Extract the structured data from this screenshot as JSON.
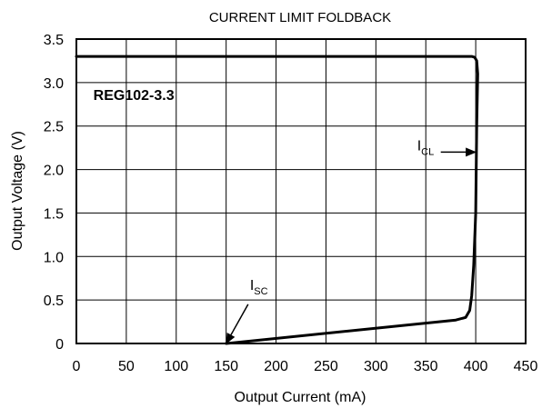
{
  "chart_data": {
    "type": "line",
    "title": "CURRENT LIMIT FOLDBACK",
    "xlabel": "Output Current (mA)",
    "ylabel": "Output Voltage (V)",
    "xlim": [
      0,
      450
    ],
    "ylim": [
      0,
      3.5
    ],
    "x_ticks": [
      "0",
      "50",
      "100",
      "150",
      "200",
      "250",
      "300",
      "350",
      "400",
      "450"
    ],
    "y_ticks": [
      "0",
      "0.5",
      "1.0",
      "1.5",
      "2.0",
      "2.5",
      "3.0",
      "3.5"
    ],
    "grid": true,
    "device_label": "REG102-3.3",
    "series": [
      {
        "color": "#000000",
        "x": [
          0,
          396,
          399,
          401,
          402,
          401,
          400,
          398,
          396,
          394,
          390,
          380,
          150
        ],
        "y": [
          3.3,
          3.3,
          3.29,
          3.25,
          3.1,
          2.5,
          1.5,
          0.9,
          0.55,
          0.38,
          0.3,
          0.27,
          0.0
        ]
      }
    ],
    "annotations": [
      {
        "main": "I",
        "sub": "CL",
        "x_data": [
          365,
          400
        ],
        "y_data": [
          2.2,
          2.2
        ]
      },
      {
        "main": "I",
        "sub": "SC",
        "x_data": [
          172,
          150
        ],
        "y_data": [
          0.45,
          0.0
        ]
      }
    ]
  }
}
